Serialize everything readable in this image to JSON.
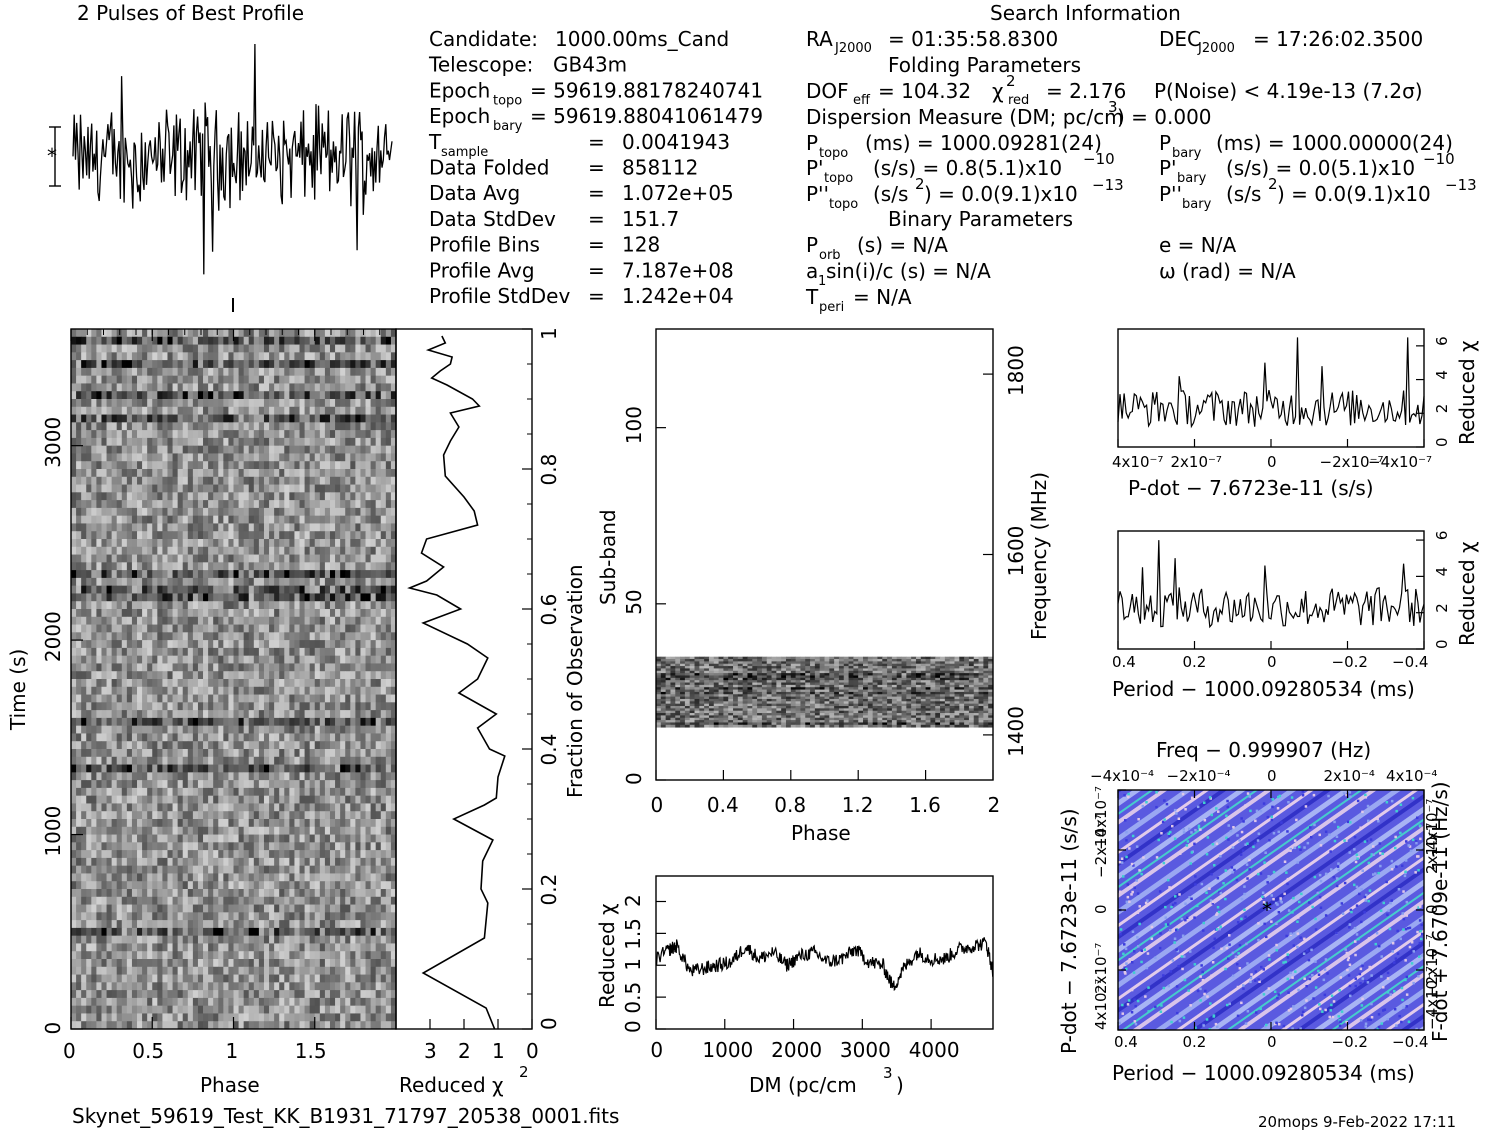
{
  "title": "2 Pulses of Best Profile",
  "search_title": "Search Information",
  "folding_title": "Folding Parameters",
  "binary_title": "Binary Parameters",
  "col1": [
    {
      "label": "Candidate:",
      "value": "1000.00ms_Cand"
    },
    {
      "label": "Telescope:",
      "value": "GB43m"
    },
    {
      "label": "Epoch",
      "sub": "topo",
      "value": "= 59619.88178240741"
    },
    {
      "label": "Epoch",
      "sub": "bary",
      "value": "= 59619.88041061479"
    },
    {
      "label": "T",
      "sub": "sample",
      "value": "0.0041943"
    },
    {
      "label": "Data Folded",
      "value": "858112"
    },
    {
      "label": "Data Avg",
      "value": "1.072e+05"
    },
    {
      "label": "Data StdDev",
      "value": "151.7"
    },
    {
      "label": "Profile Bins",
      "value": "128"
    },
    {
      "label": "Profile Avg",
      "value": "7.187e+08"
    },
    {
      "label": "Profile StdDev",
      "value": "1.242e+04"
    }
  ],
  "search": {
    "ra": "RA",
    "ra_sub": "J2000",
    "ra_value": "= 01:35:58.8300",
    "dec": "DEC",
    "dec_sub": "J2000",
    "dec_value": "= 17:26:02.3500",
    "dof": "DOF",
    "dof_sub": "eff",
    "dof_value": "= 104.32",
    "chi": "χ",
    "chi_sub": "red",
    "chi_value": "= 2.176",
    "noise": "P(Noise) < 4.19e-13   (7.2σ)",
    "dm": "Dispersion Measure (DM; pc/cm",
    "dm_value": ") = 0.000",
    "ptopo_label": "P",
    "ptopo_sub": "topo",
    "ptopo_value": "(ms) =   1000.09281(24)",
    "pbary_label": "P",
    "pbary_sub": "bary",
    "pbary_value": "(ms) =   1000.00000(24)",
    "pdtopo_label": "P'",
    "pdtopo_sub": "topo",
    "pdtopo_value": "(s/s) =   0.8(5.1)x10",
    "pdtopo_exp": "−10",
    "pdbary_label": "P'",
    "pdbary_sub": "bary",
    "pdbary_value": "(s/s) = 0.0(5.1)x10",
    "pdbary_exp": "−10",
    "pddtopo_label": "P''",
    "pddtopo_sub": "topo",
    "pddtopo_value": "(s/s",
    "pddtopo_value2": ") = 0.0(9.1)x10",
    "pddtopo_exp": "−13",
    "pddbary_label": "P''",
    "pddbary_sub": "bary",
    "pddbary_value": "(s/s",
    "pddbary_value2": ") = 0.0(9.1)x10",
    "pddbary_exp": "−13",
    "porb": "P",
    "porb_sub": "orb",
    "porb_value": "(s) = N/A",
    "e": "e = N/A",
    "asini": "a",
    "asini_sub": "1",
    "asini_value": "sin(i)/c (s) = N/A",
    "omega": "ω (rad) = N/A",
    "tperi": "T",
    "tperi_sub": "peri",
    "tperi_value": "= N/A"
  },
  "labels": {
    "phase": "Phase",
    "time": "Time (s)",
    "reduced_chi": "Reduced χ",
    "fraction": "Fraction of Observation",
    "subband": "Sub-band",
    "frequency": "Frequency (MHz)",
    "dm_axis": "DM (pc/cm",
    "pdot_axis": "P-dot − 7.6723e-11 (s/s)",
    "period_axis": "Period − 1000.09280534 (ms)",
    "freq_axis": "Freq − 0.999907 (Hz)",
    "pdot_left": "P-dot − 7.6723e-11 (s/s)",
    "fdot_right": "F-dot + 7.6709e-11 (Hz/s)",
    "filename": "Skynet_59619_Test_KK_B1931_71797_20538_0001.fits",
    "footer": "20mops   9-Feb-2022 17:11"
  },
  "chart_data": [
    {
      "type": "line",
      "title": "2 Pulses of Best Profile",
      "xlim": [
        0,
        2
      ],
      "note": "noise-dominated profile, 2 pulses"
    },
    {
      "type": "heatmap",
      "xlabel": "Phase",
      "ylabel": "Time (s)",
      "xlim": [
        0,
        2
      ],
      "ylim": [
        0,
        3600
      ],
      "x_ticks": [
        "0",
        "0.5",
        "1",
        "1.5"
      ],
      "y_ticks": [
        "0",
        "1000",
        "2000",
        "3000"
      ]
    },
    {
      "type": "line",
      "xlabel": "Reduced χ²",
      "x_ticks": [
        "3",
        "2",
        "1",
        "0"
      ],
      "xlim": [
        4,
        0
      ],
      "y_right_label": "Fraction of Observation",
      "y_ticks": [
        "0",
        "0.2",
        "0.4",
        "0.6",
        "0.8",
        "1"
      ],
      "x": [
        1.1,
        1.35,
        3.2,
        1.4,
        1.3,
        1.5,
        1.45,
        1.15,
        2.3,
        1.4,
        1.05,
        1.0,
        0.8,
        1.25,
        1.6,
        1.05,
        2.15,
        1.6,
        1.3,
        1.9,
        3.2,
        2.1,
        2.8,
        3.6,
        3.1,
        2.6,
        3.25,
        3.1,
        1.6,
        1.7,
        2.0,
        2.55,
        2.6,
        2.4,
        2.15,
        2.4,
        1.55,
        1.75,
        2.5,
        2.95,
        2.7,
        2.4,
        2.35,
        3.05,
        2.55,
        2.65
      ],
      "y": [
        0.0,
        0.03,
        0.08,
        0.13,
        0.18,
        0.2,
        0.24,
        0.27,
        0.3,
        0.32,
        0.33,
        0.36,
        0.39,
        0.4,
        0.43,
        0.45,
        0.48,
        0.5,
        0.53,
        0.55,
        0.58,
        0.6,
        0.62,
        0.63,
        0.64,
        0.66,
        0.68,
        0.7,
        0.72,
        0.74,
        0.76,
        0.79,
        0.82,
        0.84,
        0.86,
        0.88,
        0.89,
        0.9,
        0.92,
        0.93,
        0.94,
        0.95,
        0.96,
        0.97,
        0.98,
        0.99
      ]
    },
    {
      "type": "heatmap",
      "xlabel": "Phase",
      "ylabel": "Sub-band",
      "y_right_label": "Frequency (MHz)",
      "xlim": [
        0,
        2
      ],
      "ylim": [
        0,
        128
      ],
      "x_ticks": [
        "0",
        "0.4",
        "0.8",
        "1.2",
        "1.6",
        "2"
      ],
      "y_ticks": [
        "0",
        "50",
        "100"
      ],
      "y_right_ticks": [
        "1400",
        "1600",
        "1800"
      ],
      "data_band": [
        15,
        35
      ]
    },
    {
      "type": "line",
      "xlabel": "DM (pc/cm³)",
      "ylabel": "Reduced χ²",
      "xlim": [
        0,
        4900
      ],
      "ylim": [
        0,
        2.4
      ],
      "x_ticks": [
        "0",
        "1000",
        "2000",
        "3000",
        "4000"
      ],
      "y_ticks": [
        "0",
        "0.5",
        "1",
        "1.5",
        "2"
      ],
      "x": [
        0,
        200,
        300,
        500,
        700,
        900,
        1100,
        1300,
        1500,
        1700,
        1900,
        2100,
        2300,
        2500,
        2700,
        2900,
        3100,
        3300,
        3450,
        3600,
        3800,
        4000,
        4200,
        4400,
        4600,
        4800,
        4900
      ],
      "y": [
        1.1,
        1.25,
        1.3,
        0.9,
        0.95,
        1.0,
        1.05,
        1.3,
        1.1,
        1.2,
        1.0,
        1.15,
        1.2,
        1.05,
        1.1,
        1.25,
        1.05,
        1.0,
        0.65,
        0.95,
        1.2,
        1.1,
        1.1,
        1.25,
        1.3,
        1.35,
        0.9
      ]
    },
    {
      "type": "line",
      "xlabel": "P-dot − 7.6723e-11 (s/s)",
      "ylabel": "Reduced χ²",
      "ylim": [
        0,
        7
      ],
      "x_ticks": [
        "4x10⁻⁷",
        "2x10⁻⁷",
        "0",
        "−2x10⁻⁷",
        "−4x10⁻⁷"
      ],
      "y_ticks": [
        "0",
        "2",
        "4",
        "6"
      ]
    },
    {
      "type": "line",
      "xlabel": "Period − 1000.09280534 (ms)",
      "ylabel": "Reduced χ²",
      "ylim": [
        0,
        6.5
      ],
      "x_ticks": [
        "0.4",
        "0.2",
        "0",
        "−0.2",
        "−0.4"
      ],
      "y_ticks": [
        "0",
        "2",
        "4",
        "6"
      ]
    },
    {
      "type": "heatmap",
      "xlabel": "Period − 1000.09280534 (ms)",
      "ylabel": "P-dot − 7.6723e-11 (s/s)",
      "top_label": "Freq − 0.999907 (Hz)",
      "right_label": "F-dot + 7.6709e-11 (Hz/s)",
      "x_ticks": [
        "0.4",
        "0.2",
        "0",
        "−0.2",
        "−0.4"
      ],
      "top_ticks": [
        "−4x10⁻⁴",
        "−2x10⁻⁴",
        "0",
        "2x10⁻⁴",
        "4x10⁻⁴"
      ],
      "y_ticks": [
        "4x10⁻⁷",
        "2x10⁻⁷",
        "0",
        "−2x10⁻⁷",
        "−4x10⁻⁷"
      ],
      "right_ticks": [
        "−4x10⁻⁷",
        "−2x10⁻⁷",
        "0",
        "2x10⁻⁷",
        "4x10⁻⁷"
      ],
      "colors": [
        "#3c3cdc",
        "#8aa0f0",
        "#e0c8e8",
        "#40d0d0"
      ]
    }
  ]
}
